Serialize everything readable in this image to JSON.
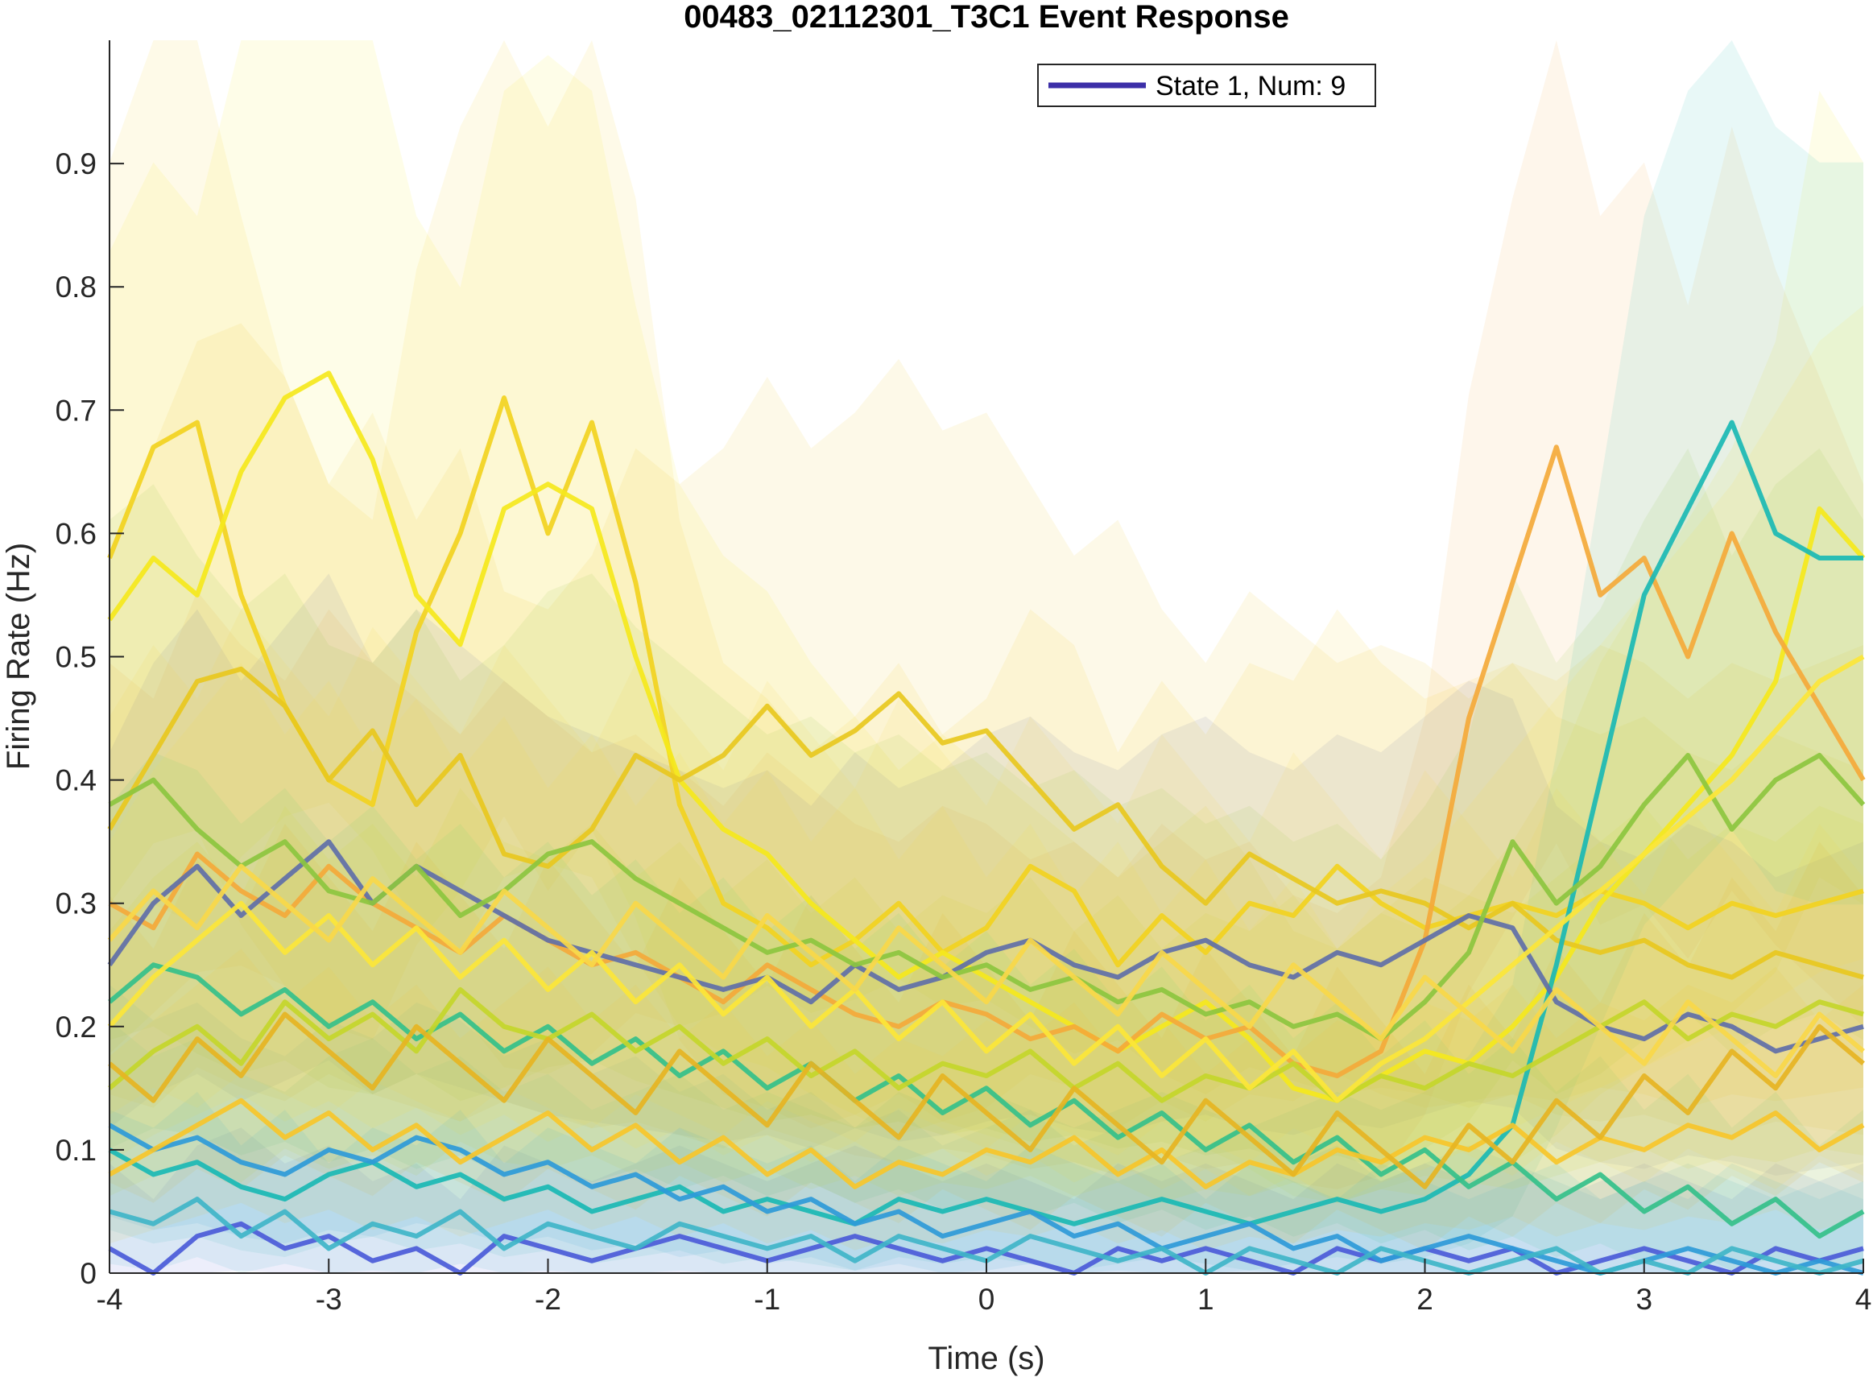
{
  "chart_data": {
    "type": "line",
    "title": "00483_02112301_T3C1 Event Response",
    "xlabel": "Time (s)",
    "ylabel": "Firing Rate (Hz)",
    "xlim": [
      -4,
      4
    ],
    "ylim": [
      0,
      1
    ],
    "xticks": [
      "-4",
      "-3",
      "-2",
      "-1",
      "0",
      "1",
      "2",
      "3",
      "4"
    ],
    "yticks": [
      "0",
      "0.1",
      "0.2",
      "0.3",
      "0.4",
      "0.5",
      "0.6",
      "0.7",
      "0.8",
      "0.9"
    ],
    "grid": false,
    "legend": {
      "position": "top-right",
      "entries": [
        {
          "label": "State 1, Num: 9",
          "color": "#3c2fa8"
        }
      ]
    },
    "colormap": "parula",
    "x": [
      -4.0,
      -3.8,
      -3.6,
      -3.4,
      -3.2,
      -3.0,
      -2.8,
      -2.6,
      -2.4,
      -2.2,
      -2.0,
      -1.8,
      -1.6,
      -1.4,
      -1.2,
      -1.0,
      -0.8,
      -0.6,
      -0.4,
      -0.2,
      0.0,
      0.2,
      0.4,
      0.6,
      0.8,
      1.0,
      1.2,
      1.4,
      1.6,
      1.8,
      2.0,
      2.2,
      2.4,
      2.6,
      2.8,
      3.0,
      3.2,
      3.4,
      3.6,
      3.8,
      4.0
    ],
    "series": [
      {
        "color": "#f2d21f",
        "values": [
          0.58,
          0.67,
          0.69,
          0.55,
          0.46,
          0.4,
          0.38,
          0.52,
          0.6,
          0.71,
          0.6,
          0.69,
          0.56,
          0.38,
          0.3,
          0.28,
          0.25,
          0.27,
          0.3,
          0.26,
          0.28,
          0.33,
          0.31,
          0.25,
          0.29,
          0.26,
          0.3,
          0.29,
          0.33,
          0.3,
          0.28,
          0.29,
          0.3,
          0.29,
          0.31,
          0.3,
          0.28,
          0.3,
          0.29,
          0.3,
          0.31
        ]
      },
      {
        "color": "#f5e81c",
        "values": [
          0.53,
          0.58,
          0.55,
          0.65,
          0.71,
          0.73,
          0.66,
          0.55,
          0.51,
          0.62,
          0.64,
          0.62,
          0.5,
          0.4,
          0.36,
          0.34,
          0.3,
          0.27,
          0.24,
          0.26,
          0.24,
          0.22,
          0.2,
          0.18,
          0.2,
          0.22,
          0.19,
          0.15,
          0.14,
          0.16,
          0.18,
          0.17,
          0.2,
          0.24,
          0.3,
          0.34,
          0.38,
          0.42,
          0.48,
          0.62,
          0.58
        ]
      },
      {
        "color": "#e8c81e",
        "values": [
          0.36,
          0.42,
          0.48,
          0.49,
          0.46,
          0.4,
          0.44,
          0.38,
          0.42,
          0.34,
          0.33,
          0.36,
          0.42,
          0.4,
          0.42,
          0.46,
          0.42,
          0.44,
          0.47,
          0.43,
          0.44,
          0.4,
          0.36,
          0.38,
          0.33,
          0.3,
          0.34,
          0.32,
          0.3,
          0.31,
          0.3,
          0.28,
          0.3,
          0.27,
          0.26,
          0.27,
          0.25,
          0.24,
          0.26,
          0.25,
          0.24
        ]
      },
      {
        "color": "#f4a93a",
        "values": [
          0.3,
          0.28,
          0.34,
          0.31,
          0.29,
          0.33,
          0.3,
          0.28,
          0.26,
          0.29,
          0.27,
          0.25,
          0.26,
          0.24,
          0.22,
          0.25,
          0.23,
          0.21,
          0.2,
          0.22,
          0.21,
          0.19,
          0.2,
          0.18,
          0.21,
          0.19,
          0.2,
          0.17,
          0.16,
          0.18,
          0.27,
          0.45,
          0.56,
          0.67,
          0.55,
          0.58,
          0.5,
          0.6,
          0.52,
          0.46,
          0.4
        ]
      },
      {
        "color": "#1ab8b4",
        "values": [
          0.1,
          0.08,
          0.09,
          0.07,
          0.06,
          0.08,
          0.09,
          0.07,
          0.08,
          0.06,
          0.07,
          0.05,
          0.06,
          0.07,
          0.05,
          0.06,
          0.05,
          0.04,
          0.06,
          0.05,
          0.06,
          0.05,
          0.04,
          0.05,
          0.06,
          0.05,
          0.04,
          0.05,
          0.06,
          0.05,
          0.06,
          0.08,
          0.12,
          0.25,
          0.4,
          0.55,
          0.62,
          0.69,
          0.6,
          0.58,
          0.58
        ]
      },
      {
        "color": "#4b5bd8",
        "values": [
          0.02,
          0.0,
          0.03,
          0.04,
          0.02,
          0.03,
          0.01,
          0.02,
          0.0,
          0.03,
          0.02,
          0.01,
          0.02,
          0.03,
          0.02,
          0.01,
          0.02,
          0.03,
          0.02,
          0.01,
          0.02,
          0.01,
          0.0,
          0.02,
          0.01,
          0.02,
          0.01,
          0.0,
          0.02,
          0.01,
          0.02,
          0.01,
          0.02,
          0.0,
          0.01,
          0.02,
          0.01,
          0.0,
          0.02,
          0.01,
          0.02
        ]
      },
      {
        "color": "#5f6fa8",
        "values": [
          0.25,
          0.3,
          0.33,
          0.29,
          0.32,
          0.35,
          0.3,
          0.33,
          0.31,
          0.29,
          0.27,
          0.26,
          0.25,
          0.24,
          0.23,
          0.24,
          0.22,
          0.25,
          0.23,
          0.24,
          0.26,
          0.27,
          0.25,
          0.24,
          0.26,
          0.27,
          0.25,
          0.24,
          0.26,
          0.25,
          0.27,
          0.29,
          0.28,
          0.22,
          0.2,
          0.19,
          0.21,
          0.2,
          0.18,
          0.19,
          0.2
        ]
      },
      {
        "color": "#2e9ad8",
        "values": [
          0.12,
          0.1,
          0.11,
          0.09,
          0.08,
          0.1,
          0.09,
          0.11,
          0.1,
          0.08,
          0.09,
          0.07,
          0.08,
          0.06,
          0.07,
          0.05,
          0.06,
          0.04,
          0.05,
          0.03,
          0.04,
          0.05,
          0.03,
          0.04,
          0.02,
          0.03,
          0.04,
          0.02,
          0.03,
          0.01,
          0.02,
          0.03,
          0.02,
          0.01,
          0.0,
          0.01,
          0.02,
          0.01,
          0.0,
          0.01,
          0.0
        ]
      },
      {
        "color": "#34c08a",
        "values": [
          0.22,
          0.25,
          0.24,
          0.21,
          0.23,
          0.2,
          0.22,
          0.19,
          0.21,
          0.18,
          0.2,
          0.17,
          0.19,
          0.16,
          0.18,
          0.15,
          0.17,
          0.14,
          0.16,
          0.13,
          0.15,
          0.12,
          0.14,
          0.11,
          0.13,
          0.1,
          0.12,
          0.09,
          0.11,
          0.08,
          0.1,
          0.07,
          0.09,
          0.06,
          0.08,
          0.05,
          0.07,
          0.04,
          0.06,
          0.03,
          0.05
        ]
      },
      {
        "color": "#8cc63f",
        "values": [
          0.38,
          0.4,
          0.36,
          0.33,
          0.35,
          0.31,
          0.3,
          0.33,
          0.29,
          0.31,
          0.34,
          0.35,
          0.32,
          0.3,
          0.28,
          0.26,
          0.27,
          0.25,
          0.26,
          0.24,
          0.25,
          0.23,
          0.24,
          0.22,
          0.23,
          0.21,
          0.22,
          0.2,
          0.21,
          0.19,
          0.22,
          0.26,
          0.35,
          0.3,
          0.33,
          0.38,
          0.42,
          0.36,
          0.4,
          0.42,
          0.38
        ]
      },
      {
        "color": "#c4d62a",
        "values": [
          0.15,
          0.18,
          0.2,
          0.17,
          0.22,
          0.19,
          0.21,
          0.18,
          0.23,
          0.2,
          0.19,
          0.21,
          0.18,
          0.2,
          0.17,
          0.19,
          0.16,
          0.18,
          0.15,
          0.17,
          0.16,
          0.18,
          0.15,
          0.17,
          0.14,
          0.16,
          0.15,
          0.17,
          0.14,
          0.16,
          0.15,
          0.17,
          0.16,
          0.18,
          0.2,
          0.22,
          0.19,
          0.21,
          0.2,
          0.22,
          0.21
        ]
      },
      {
        "color": "#f7c52a",
        "values": [
          0.08,
          0.1,
          0.12,
          0.14,
          0.11,
          0.13,
          0.1,
          0.12,
          0.09,
          0.11,
          0.13,
          0.1,
          0.12,
          0.09,
          0.11,
          0.08,
          0.1,
          0.07,
          0.09,
          0.08,
          0.1,
          0.09,
          0.11,
          0.08,
          0.1,
          0.07,
          0.09,
          0.08,
          0.1,
          0.09,
          0.11,
          0.1,
          0.12,
          0.09,
          0.11,
          0.1,
          0.12,
          0.11,
          0.13,
          0.1,
          0.12
        ]
      },
      {
        "color": "#fce638",
        "values": [
          0.2,
          0.24,
          0.27,
          0.3,
          0.26,
          0.29,
          0.25,
          0.28,
          0.24,
          0.27,
          0.23,
          0.26,
          0.22,
          0.25,
          0.21,
          0.24,
          0.2,
          0.23,
          0.19,
          0.22,
          0.18,
          0.21,
          0.17,
          0.2,
          0.16,
          0.19,
          0.15,
          0.18,
          0.14,
          0.17,
          0.19,
          0.22,
          0.25,
          0.28,
          0.31,
          0.34,
          0.37,
          0.4,
          0.44,
          0.48,
          0.5
        ]
      },
      {
        "color": "#e6b422",
        "values": [
          0.17,
          0.14,
          0.19,
          0.16,
          0.21,
          0.18,
          0.15,
          0.2,
          0.17,
          0.14,
          0.19,
          0.16,
          0.13,
          0.18,
          0.15,
          0.12,
          0.17,
          0.14,
          0.11,
          0.16,
          0.13,
          0.1,
          0.15,
          0.12,
          0.09,
          0.14,
          0.11,
          0.08,
          0.13,
          0.1,
          0.07,
          0.12,
          0.09,
          0.14,
          0.11,
          0.16,
          0.13,
          0.18,
          0.15,
          0.2,
          0.17
        ]
      },
      {
        "color": "#3fb5c8",
        "values": [
          0.05,
          0.04,
          0.06,
          0.03,
          0.05,
          0.02,
          0.04,
          0.03,
          0.05,
          0.02,
          0.04,
          0.03,
          0.02,
          0.04,
          0.03,
          0.02,
          0.03,
          0.01,
          0.03,
          0.02,
          0.01,
          0.03,
          0.02,
          0.01,
          0.02,
          0.0,
          0.02,
          0.01,
          0.0,
          0.02,
          0.01,
          0.0,
          0.01,
          0.02,
          0.0,
          0.01,
          0.0,
          0.02,
          0.01,
          0.0,
          0.01
        ]
      },
      {
        "color": "#f9d849",
        "values": [
          0.27,
          0.31,
          0.28,
          0.33,
          0.3,
          0.27,
          0.32,
          0.29,
          0.26,
          0.31,
          0.28,
          0.25,
          0.3,
          0.27,
          0.24,
          0.29,
          0.26,
          0.23,
          0.28,
          0.25,
          0.22,
          0.27,
          0.24,
          0.21,
          0.26,
          0.23,
          0.2,
          0.25,
          0.22,
          0.19,
          0.24,
          0.21,
          0.18,
          0.23,
          0.2,
          0.17,
          0.22,
          0.19,
          0.16,
          0.21,
          0.18
        ]
      }
    ]
  }
}
